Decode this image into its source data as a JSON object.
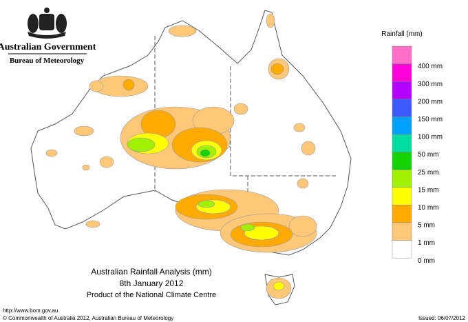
{
  "header": {
    "agency": "Australian Government",
    "bureau": "Bureau of Meteorology"
  },
  "legend": {
    "title": "Rainfall (mm)",
    "top_color": "#ff6ec7",
    "items": [
      {
        "label": "400 mm",
        "color": "#ff00d8"
      },
      {
        "label": "300 mm",
        "color": "#b400ff"
      },
      {
        "label": "200 mm",
        "color": "#3c5aff"
      },
      {
        "label": "150 mm",
        "color": "#00a0ff"
      },
      {
        "label": "100 mm",
        "color": "#00dca0"
      },
      {
        "label": "50 mm",
        "color": "#14d200"
      },
      {
        "label": "25 mm",
        "color": "#a0f000"
      },
      {
        "label": "15 mm",
        "color": "#ffff00"
      },
      {
        "label": "10 mm",
        "color": "#ffaa00"
      },
      {
        "label": "5 mm",
        "color": "#ffc878"
      },
      {
        "label": "1 mm",
        "color": "#ffffff"
      }
    ],
    "bottom_label": "0 mm"
  },
  "map": {
    "title": "Australian Rainfall Analysis (mm)",
    "date": "8th January 2012",
    "credit": "Product of the National Climate Centre"
  },
  "footer": {
    "url": "http://www.bom.gov.au",
    "copyright": "© Commonwealth of Australia 2012, Australian Bureau of Meteorology",
    "issued": "Issued: 06/07/2012"
  }
}
